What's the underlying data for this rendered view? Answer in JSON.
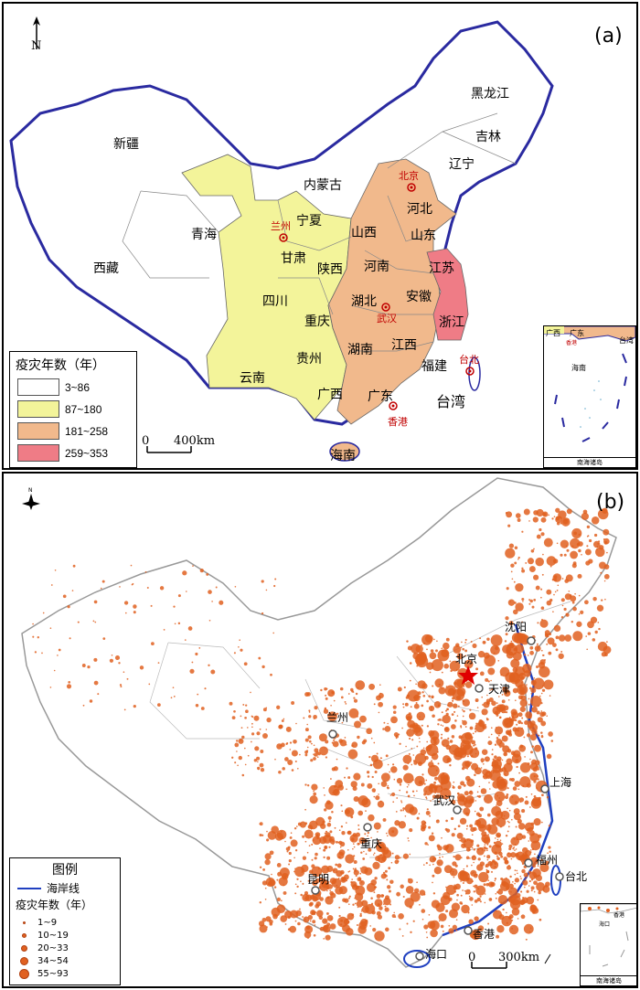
{
  "panel_a": {
    "label": "(a)",
    "legend": {
      "title": "疫灾年数（年）",
      "classes": [
        {
          "range": "3~86",
          "color": "#ffffff"
        },
        {
          "range": "87~180",
          "color": "#f3f49a"
        },
        {
          "range": "181~258",
          "color": "#f1b98c"
        },
        {
          "range": "259~353",
          "color": "#ef7c86"
        }
      ]
    },
    "scale_bar": {
      "start": "0",
      "end": "400km"
    },
    "provinces": [
      {
        "name": "黑龙江",
        "cls": "3~86"
      },
      {
        "name": "吉林",
        "cls": "3~86"
      },
      {
        "name": "辽宁",
        "cls": "3~86"
      },
      {
        "name": "内蒙古",
        "cls": "3~86"
      },
      {
        "name": "新疆",
        "cls": "3~86"
      },
      {
        "name": "西藏",
        "cls": "3~86"
      },
      {
        "name": "青海",
        "cls": "3~86"
      },
      {
        "name": "宁夏",
        "cls": "87~180"
      },
      {
        "name": "甘肃",
        "cls": "87~180"
      },
      {
        "name": "陕西",
        "cls": "87~180"
      },
      {
        "name": "四川",
        "cls": "87~180"
      },
      {
        "name": "重庆",
        "cls": "87~180"
      },
      {
        "name": "贵州",
        "cls": "87~180"
      },
      {
        "name": "云南",
        "cls": "87~180"
      },
      {
        "name": "广西",
        "cls": "87~180"
      },
      {
        "name": "山西",
        "cls": "181~258"
      },
      {
        "name": "河北",
        "cls": "181~258"
      },
      {
        "name": "山东",
        "cls": "181~258"
      },
      {
        "name": "河南",
        "cls": "181~258"
      },
      {
        "name": "安徽",
        "cls": "181~258"
      },
      {
        "name": "湖北",
        "cls": "181~258"
      },
      {
        "name": "湖南",
        "cls": "181~258"
      },
      {
        "name": "江西",
        "cls": "181~258"
      },
      {
        "name": "福建",
        "cls": "181~258"
      },
      {
        "name": "广东",
        "cls": "181~258"
      },
      {
        "name": "海南",
        "cls": "181~258"
      },
      {
        "name": "江苏",
        "cls": "259~353"
      },
      {
        "name": "浙江",
        "cls": "259~353"
      },
      {
        "name": "台湾",
        "cls": "3~86"
      }
    ],
    "cities": [
      "北京",
      "兰州",
      "武汉",
      "香港",
      "台北"
    ],
    "inset": {
      "labels": [
        "广西",
        "广东",
        "香港",
        "台湾",
        "海南"
      ],
      "caption": "南海诸岛"
    }
  },
  "panel_b": {
    "label": "(b)",
    "legend": {
      "title": "图例",
      "coastline": "海岸线",
      "subtitle": "疫灾年数（年）",
      "classes": [
        "1~9",
        "10~19",
        "20~33",
        "34~54",
        "55~93"
      ],
      "dot_color": "#e06020",
      "coast_color": "#2040c0"
    },
    "scale_bar": {
      "start": "0",
      "end": "300km"
    },
    "cities": [
      "北京",
      "天津",
      "沈阳",
      "兰州",
      "上海",
      "武汉",
      "重庆",
      "福州",
      "台北",
      "昆明",
      "香港",
      "海口"
    ],
    "inset": {
      "labels": [
        "香港",
        "海口"
      ],
      "caption": "南海诸岛"
    }
  }
}
